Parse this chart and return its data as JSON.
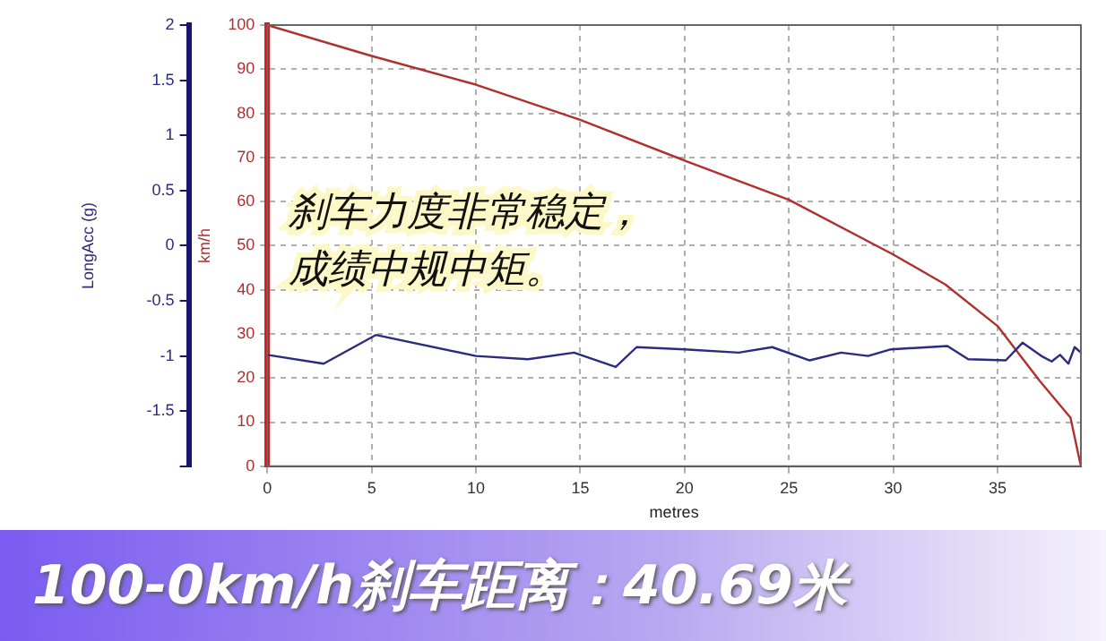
{
  "chart_data": {
    "type": "line",
    "title": "100-0km/h刹车距离：40.69米",
    "xlabel": "metres",
    "ylabel": "LongAcc (g)",
    "y2label": "km/h",
    "annotations": [
      "刹车力度非常稳定，",
      "成绩中规中矩。"
    ],
    "xlim": [
      0,
      39
    ],
    "xticks": [
      0,
      5,
      10,
      15,
      20,
      25,
      30,
      35
    ],
    "ylim": [
      -2,
      2
    ],
    "yticks": [
      {
        "value": -2,
        "label": null
      },
      -1.5,
      -1,
      -0.5,
      0,
      0.5,
      1,
      1.5,
      2
    ],
    "y2lim": [
      0,
      100
    ],
    "y2ticks": [
      0,
      10,
      20,
      30,
      40,
      50,
      60,
      70,
      80,
      90,
      100
    ],
    "grid": true,
    "legend": false,
    "marker": "none",
    "line_style": "solid",
    "series": [
      {
        "color": "#2b2b80",
        "x": [
          0,
          2.7,
          5.2,
          10,
          12.5,
          14.7,
          16.7,
          17.7,
          20,
          22.6,
          24.2,
          26,
          27.5,
          28.8,
          29.9,
          32.6,
          33.6,
          35.4,
          36.2,
          37.1,
          37.6,
          38,
          38.4,
          38.7,
          39
        ],
        "values": [
          -0.99,
          -1.07,
          -0.81,
          -1.0,
          -1.03,
          -0.97,
          -1.1,
          -0.92,
          -0.94,
          -0.97,
          -0.92,
          -1.04,
          -0.97,
          -1.0,
          -0.94,
          -0.91,
          -1.03,
          -1.04,
          -0.88,
          -1.0,
          -1.05,
          -0.99,
          -1.07,
          -0.92,
          -0.97
        ]
      },
      {
        "color": "#b03030",
        "axis": "y2",
        "x": [
          0,
          5,
          10,
          15,
          20,
          25,
          30,
          32.5,
          35,
          37,
          38.5,
          39
        ],
        "values": [
          100,
          93,
          86.5,
          78.5,
          69.3,
          60.4,
          48,
          41.2,
          31.8,
          19.5,
          11,
          0
        ]
      }
    ]
  }
}
